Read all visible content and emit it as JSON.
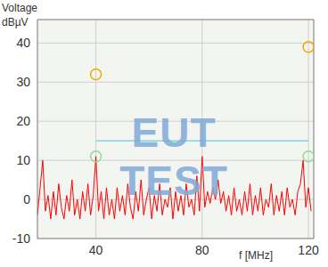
{
  "chart_data": {
    "type": "line",
    "ylabel": "Voltage",
    "yunit": "dBµV",
    "xlabel": "f [MHz]",
    "annotation": "EUT TEST",
    "xlim": [
      18,
      122
    ],
    "xticks": [
      40,
      80,
      120
    ],
    "ylim": [
      -10,
      46
    ],
    "yticks": [
      -10,
      0,
      10,
      20,
      30,
      40
    ],
    "grid": true,
    "series": [
      {
        "type": "line",
        "color": "#ff0000",
        "x": [
          18,
          19,
          20,
          21,
          22,
          23,
          24,
          25,
          26,
          27,
          28,
          29,
          30,
          31,
          32,
          33,
          34,
          35,
          36,
          37,
          38,
          39,
          40,
          41,
          42,
          43,
          44,
          45,
          46,
          47,
          48,
          49,
          50,
          51,
          52,
          53,
          54,
          55,
          56,
          57,
          58,
          59,
          60,
          61,
          62,
          63,
          64,
          65,
          66,
          67,
          68,
          69,
          70,
          71,
          72,
          73,
          74,
          75,
          76,
          77,
          78,
          79,
          80,
          81,
          82,
          83,
          84,
          85,
          86,
          87,
          88,
          89,
          90,
          91,
          92,
          93,
          94,
          95,
          96,
          97,
          98,
          99,
          100,
          101,
          102,
          103,
          104,
          105,
          106,
          107,
          108,
          109,
          110,
          111,
          112,
          113,
          114,
          115,
          116,
          117,
          118,
          119,
          120,
          121
        ],
        "values": [
          -4,
          3,
          10,
          -3,
          1,
          -5,
          2,
          -4,
          4,
          -2,
          -5,
          1,
          -3,
          5,
          -4,
          0,
          -5,
          2,
          -3,
          4,
          -4,
          1,
          11,
          -3,
          2,
          -5,
          3,
          -4,
          0,
          -5,
          3,
          -3,
          1,
          -4,
          4,
          -2,
          -5,
          2,
          -3,
          5,
          -4,
          0,
          3,
          -5,
          1,
          -3,
          4,
          -4,
          0,
          -2,
          3,
          -5,
          2,
          -3,
          1,
          -4,
          4,
          -2,
          0,
          -4,
          6,
          -3,
          11,
          -2,
          2,
          -1,
          3,
          0,
          5,
          -1,
          2,
          -3,
          1,
          -4,
          3,
          -3,
          0,
          -4,
          2,
          -3,
          4,
          -4,
          1,
          -3,
          3,
          -4,
          0,
          -2,
          4,
          -4,
          1,
          -3,
          2,
          -4,
          3,
          -2,
          0,
          -4,
          2,
          4,
          10,
          -2,
          3,
          -3
        ]
      },
      {
        "type": "line",
        "color": "#4cc3d9",
        "x": [
          40,
          120
        ],
        "values": [
          15,
          15
        ]
      },
      {
        "type": "scatter",
        "color": "#f0a800",
        "marker": "circle",
        "x": [
          40,
          120
        ],
        "values": [
          32,
          39
        ]
      },
      {
        "type": "scatter",
        "color": "#8fdc8f",
        "marker": "circle",
        "x": [
          40,
          120
        ],
        "values": [
          11,
          11
        ]
      }
    ]
  }
}
